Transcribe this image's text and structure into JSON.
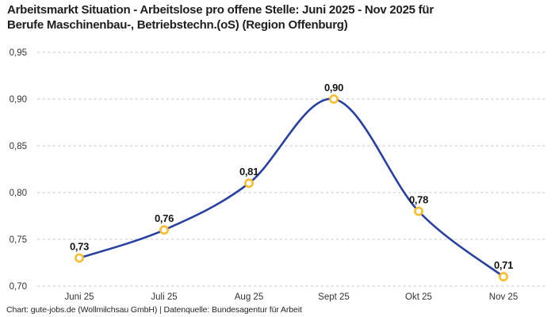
{
  "header": {
    "title": "Arbeitsmarkt Situation - Arbeitslose pro offene Stelle: Juni 2025 - Nov 2025 für\nBerufe Maschinenbau-, Betriebstechn.(oS) (Region Offenburg)"
  },
  "footer": {
    "text": "Chart: gute-jobs.de (Wollmilchsau GmbH) | Datenquelle: Bundesagentur für Arbeit"
  },
  "chart_data": {
    "type": "line",
    "title": "Arbeitsmarkt Situation - Arbeitslose pro offene Stelle: Juni 2025 - Nov 2025 für Berufe Maschinenbau-, Betriebstechn.(oS) (Region Offenburg)",
    "categories": [
      "Juni 25",
      "Juli 25",
      "Aug 25",
      "Sept 25",
      "Okt 25",
      "Nov 25"
    ],
    "values": [
      0.73,
      0.76,
      0.81,
      0.9,
      0.78,
      0.71
    ],
    "value_labels": [
      "0,73",
      "0,76",
      "0,81",
      "0,90",
      "0,78",
      "0,71"
    ],
    "yticks": [
      0.7,
      0.75,
      0.8,
      0.85,
      0.9,
      0.95
    ],
    "ytick_labels": [
      "0,70",
      "0,75",
      "0,80",
      "0,85",
      "0,90",
      "0,95"
    ],
    "ylim": [
      0.7,
      0.95
    ],
    "xlabel": "",
    "ylabel": "",
    "legend": "none",
    "grid": "horizontal-dashed",
    "curve": "smooth",
    "colors": {
      "line": "#2840a0",
      "marker_stroke": "#fbbc2c",
      "marker_fill": "#ffffff",
      "grid": "#c9c9c9",
      "tick_label": "#333333",
      "value_label": "#141414",
      "title": "#1e1e1e",
      "background": "#ffffff"
    }
  }
}
